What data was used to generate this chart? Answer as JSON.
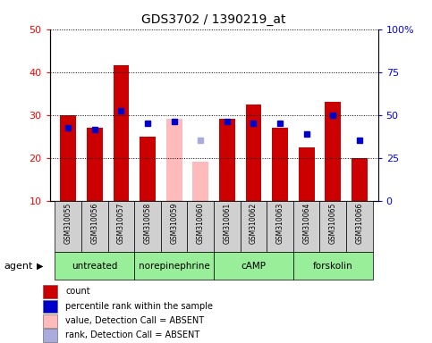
{
  "title": "GDS3702 / 1390219_at",
  "samples": [
    "GSM310055",
    "GSM310056",
    "GSM310057",
    "GSM310058",
    "GSM310059",
    "GSM310060",
    "GSM310061",
    "GSM310062",
    "GSM310063",
    "GSM310064",
    "GSM310065",
    "GSM310066"
  ],
  "bar_values": [
    30.0,
    27.0,
    41.5,
    25.0,
    29.0,
    19.0,
    29.0,
    32.5,
    27.0,
    22.5,
    33.0,
    20.0
  ],
  "absent_bar_indices": [
    4,
    5
  ],
  "percentile_values": [
    27.0,
    26.5,
    31.0,
    28.0,
    28.5,
    24.0,
    28.5,
    28.0,
    28.0,
    25.5,
    30.0,
    24.0
  ],
  "absent_rank_indices": [
    5
  ],
  "ylim_left": [
    10,
    50
  ],
  "ylim_right": [
    0,
    100
  ],
  "yticks_left": [
    10,
    20,
    30,
    40,
    50
  ],
  "yticks_right": [
    0,
    25,
    50,
    75,
    100
  ],
  "ytick_labels_right": [
    "0",
    "25",
    "50",
    "75",
    "100%"
  ],
  "groups": [
    {
      "label": "untreated",
      "start": 0,
      "end": 3
    },
    {
      "label": "norepinephrine",
      "start": 3,
      "end": 6
    },
    {
      "label": "cAMP",
      "start": 6,
      "end": 9
    },
    {
      "label": "forskolin",
      "start": 9,
      "end": 12
    }
  ],
  "group_color": "#99ee99",
  "bar_color_normal": "#cc0000",
  "bar_color_absent": "#ffbbbb",
  "pct_color_normal": "#0000cc",
  "pct_color_absent": "#aaaadd",
  "sample_box_color": "#d0d0d0",
  "legend_items": [
    {
      "color": "#cc0000",
      "label": "count"
    },
    {
      "color": "#0000cc",
      "label": "percentile rank within the sample"
    },
    {
      "color": "#ffbbbb",
      "label": "value, Detection Call = ABSENT"
    },
    {
      "color": "#aaaadd",
      "label": "rank, Detection Call = ABSENT"
    }
  ]
}
